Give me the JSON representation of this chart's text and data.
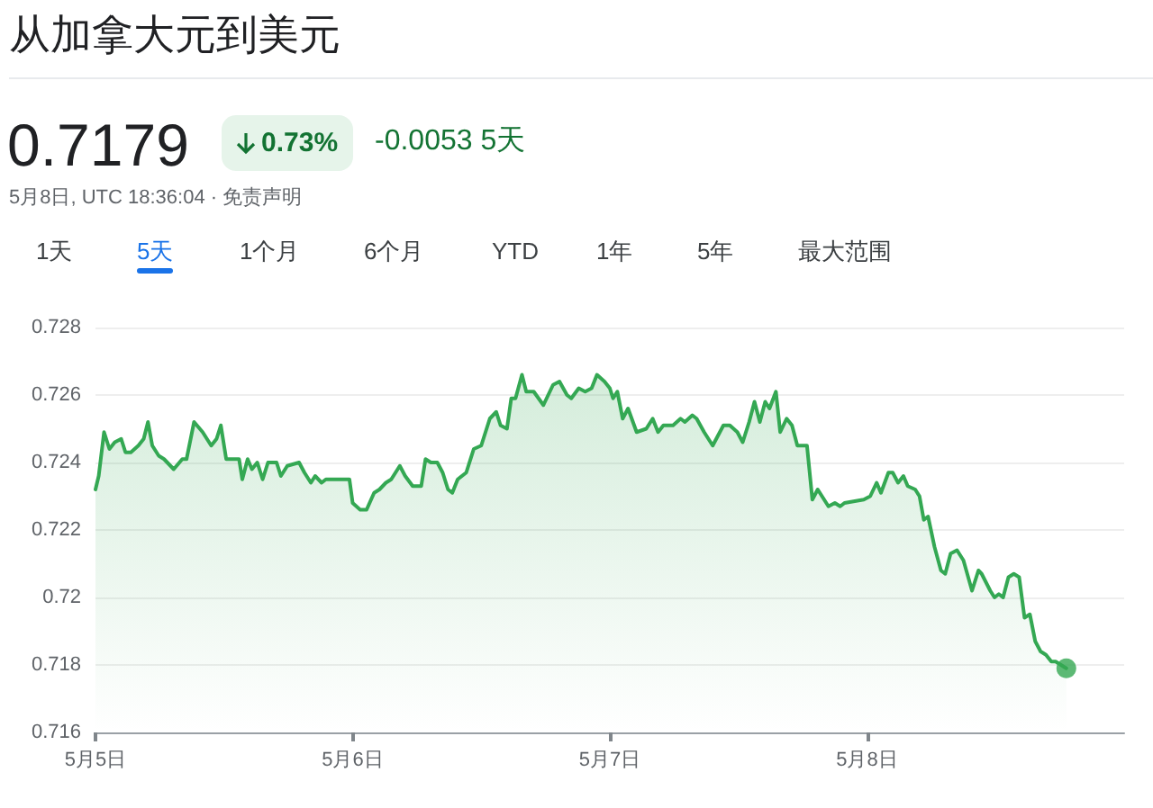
{
  "chart_data": {
    "type": "area",
    "title": "从加拿大元到美元",
    "annotations": [
      "0.7179",
      "0.73%",
      "-0.0053 5天",
      "5月8日, UTC 18:36:04 · 免责声明",
      "1天",
      "5天",
      "1个月",
      "6个月",
      "YTD",
      "1年",
      "5年",
      "最大范围"
    ],
    "series": [
      {
        "color": "#34a853",
        "x": [
          "--05-05T00:00",
          "--05-05T00:18",
          "--05-05T00:48",
          "--05-05T01:18",
          "--05-05T01:48",
          "--05-05T02:24",
          "--05-05T02:48",
          "--05-05T03:18",
          "--05-05T04:00",
          "--05-05T04:30",
          "--05-05T04:54",
          "--05-05T05:18",
          "--05-05T05:54",
          "--05-05T06:24",
          "--05-05T07:18",
          "--05-05T08:06",
          "--05-05T08:30",
          "--05-05T09:12",
          "--05-05T10:00",
          "--05-05T10:48",
          "--05-05T11:18",
          "--05-05T11:42",
          "--05-05T12:12",
          "--05-05T13:00",
          "--05-05T13:24",
          "--05-05T13:42",
          "--05-05T14:12",
          "--05-05T14:36",
          "--05-05T15:06",
          "--05-05T15:36",
          "--05-05T16:06",
          "--05-05T16:54",
          "--05-05T17:18",
          "--05-05T17:54",
          "--05-05T19:00",
          "--05-05T19:30",
          "--05-05T20:06",
          "--05-05T20:30",
          "--05-05T21:06",
          "--05-05T21:30",
          "--05-05T22:06",
          "--05-05T23:42",
          "--05-06T00:00",
          "--05-06T00:42",
          "--05-06T01:18",
          "--05-06T02:00",
          "--05-06T02:30",
          "--05-06T03:06",
          "--05-06T03:36",
          "--05-06T04:24",
          "--05-06T04:54",
          "--05-06T05:36",
          "--05-06T06:24",
          "--05-06T06:48",
          "--05-06T07:18",
          "--05-06T07:54",
          "--05-06T08:24",
          "--05-06T08:54",
          "--05-06T09:18",
          "--05-06T09:48",
          "--05-06T10:36",
          "--05-06T11:18",
          "--05-06T12:00",
          "--05-06T12:48",
          "--05-06T13:24",
          "--05-06T13:48",
          "--05-06T14:24",
          "--05-06T14:48",
          "--05-06T15:12",
          "--05-06T15:48",
          "--05-06T16:12",
          "--05-06T16:54",
          "--05-06T17:48",
          "--05-06T18:42",
          "--05-06T19:18",
          "--05-06T20:00",
          "--05-06T20:24",
          "--05-06T21:06",
          "--05-06T21:42",
          "--05-06T22:18",
          "--05-06T22:48",
          "--05-06T23:30",
          "--05-07T00:00",
          "--05-07T00:18",
          "--05-07T00:42",
          "--05-07T01:12",
          "--05-07T01:42",
          "--05-07T02:30",
          "--05-07T03:24",
          "--05-07T04:00",
          "--05-07T04:30",
          "--05-07T05:00",
          "--05-07T05:54",
          "--05-07T06:36",
          "--05-07T07:00",
          "--05-07T07:42",
          "--05-07T08:06",
          "--05-07T08:48",
          "--05-07T09:36",
          "--05-07T10:36",
          "--05-07T11:12",
          "--05-07T11:54",
          "--05-07T12:24",
          "--05-07T13:00",
          "--05-07T13:30",
          "--05-07T14:00",
          "--05-07T14:30",
          "--05-07T14:54",
          "--05-07T15:30",
          "--05-07T15:54",
          "--05-07T16:30",
          "--05-07T17:00",
          "--05-07T17:30",
          "--05-07T18:00",
          "--05-07T18:24",
          "--05-07T18:54",
          "--05-07T19:24",
          "--05-07T20:24",
          "--05-07T21:00",
          "--05-07T21:30",
          "--05-07T21:54",
          "--05-07T23:42",
          "--05-08T00:18",
          "--05-08T00:54",
          "--05-08T01:18",
          "--05-08T02:00",
          "--05-08T02:24",
          "--05-08T02:54",
          "--05-08T03:24",
          "--05-08T03:48",
          "--05-08T04:30",
          "--05-08T04:54",
          "--05-08T05:18",
          "--05-08T05:42",
          "--05-08T06:18",
          "--05-08T06:54",
          "--05-08T07:18",
          "--05-08T07:48",
          "--05-08T08:24",
          "--05-08T09:00",
          "--05-08T09:48",
          "--05-08T10:24",
          "--05-08T10:42",
          "--05-08T11:30",
          "--05-08T11:54",
          "--05-08T12:18",
          "--05-08T12:42",
          "--05-08T13:12",
          "--05-08T13:42",
          "--05-08T14:12",
          "--05-08T14:42",
          "--05-08T15:12",
          "--05-08T15:42",
          "--05-08T16:12",
          "--05-08T16:42",
          "--05-08T17:12",
          "--05-08T17:36",
          "--05-08T18:36"
        ],
        "values": [
          0.7232,
          0.7236,
          0.7249,
          0.7244,
          0.7246,
          0.7247,
          0.7243,
          0.7243,
          0.7245,
          0.7247,
          0.7252,
          0.7245,
          0.7242,
          0.7241,
          0.7238,
          0.7241,
          0.7241,
          0.7252,
          0.7249,
          0.7245,
          0.7247,
          0.7251,
          0.7241,
          0.7241,
          0.7241,
          0.7235,
          0.7241,
          0.7238,
          0.724,
          0.7235,
          0.724,
          0.724,
          0.7236,
          0.7239,
          0.724,
          0.7237,
          0.7234,
          0.7236,
          0.7234,
          0.7235,
          0.7235,
          0.7235,
          0.7228,
          0.7226,
          0.7226,
          0.7231,
          0.7232,
          0.7234,
          0.7235,
          0.7239,
          0.7236,
          0.7233,
          0.7233,
          0.7241,
          0.724,
          0.724,
          0.7237,
          0.7232,
          0.7231,
          0.7235,
          0.7237,
          0.7244,
          0.7245,
          0.7253,
          0.7255,
          0.7251,
          0.725,
          0.7259,
          0.7259,
          0.7266,
          0.7261,
          0.7261,
          0.7257,
          0.7263,
          0.7264,
          0.726,
          0.7259,
          0.7262,
          0.7261,
          0.7262,
          0.7266,
          0.7264,
          0.7262,
          0.7259,
          0.7261,
          0.7253,
          0.7256,
          0.7249,
          0.725,
          0.7253,
          0.7249,
          0.7251,
          0.7251,
          0.7253,
          0.7252,
          0.7254,
          0.7253,
          0.7249,
          0.7245,
          0.7251,
          0.7251,
          0.7249,
          0.7246,
          0.7252,
          0.7258,
          0.7252,
          0.7258,
          0.7256,
          0.7261,
          0.7249,
          0.7253,
          0.7251,
          0.7245,
          0.7245,
          0.7245,
          0.7229,
          0.7232,
          0.7227,
          0.7228,
          0.7227,
          0.7228,
          0.7229,
          0.723,
          0.7234,
          0.7231,
          0.7237,
          0.7237,
          0.7234,
          0.7236,
          0.7233,
          0.7232,
          0.723,
          0.7223,
          0.7224,
          0.7215,
          0.7208,
          0.7207,
          0.7213,
          0.7214,
          0.7211,
          0.7202,
          0.7208,
          0.7207,
          0.7202,
          0.72,
          0.7201,
          0.72,
          0.7206,
          0.7207,
          0.7206,
          0.7194,
          0.7195,
          0.7187,
          0.7184,
          0.7183,
          0.7181,
          0.7181,
          0.7179
        ]
      },
      {
        "type": "scatter",
        "color": "#34a853",
        "marker": "circle",
        "x": [
          "--05-08T18:36"
        ],
        "values": [
          0.7179
        ]
      }
    ],
    "xlim": [
      "--05-05",
      "--05-09"
    ],
    "xticks": [
      {
        "value": "--05-05",
        "label": "5月5日"
      },
      {
        "value": "--05-06",
        "label": "5月6日"
      },
      {
        "value": "--05-07",
        "label": "5月7日"
      },
      {
        "value": "--05-08",
        "label": "5月8日"
      }
    ],
    "ylim": [
      0.716,
      0.728
    ],
    "yticks": [
      0.716,
      0.718,
      0.72,
      0.722,
      0.724,
      0.726,
      0.728
    ],
    "grid": "y"
  }
}
